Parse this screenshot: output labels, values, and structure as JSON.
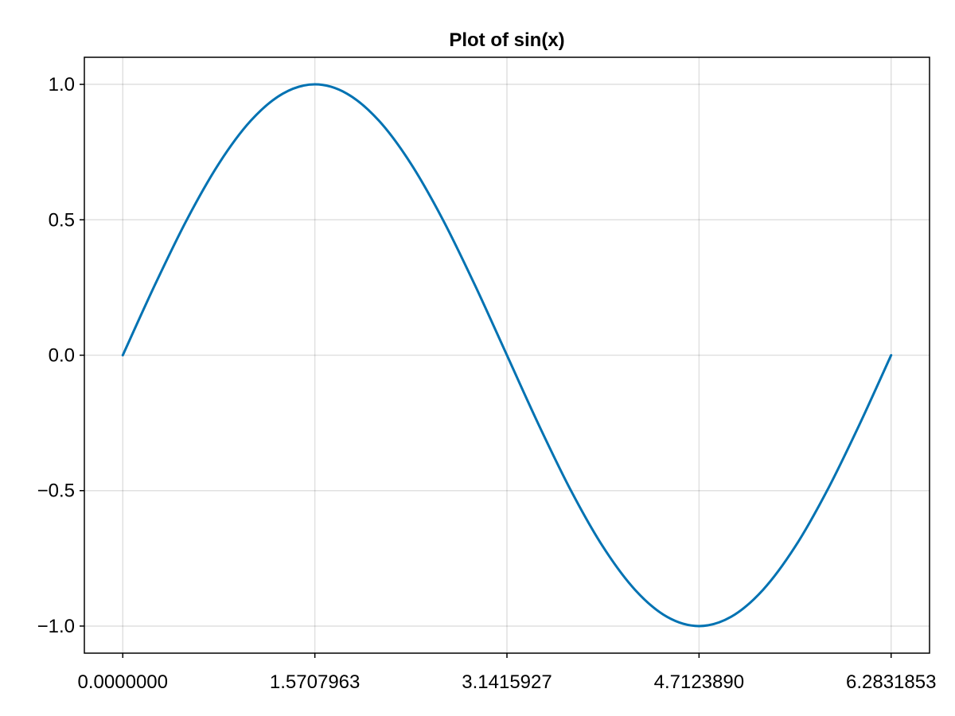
{
  "chart_data": {
    "type": "line",
    "title": "Plot of sin(x)",
    "xlabel": "",
    "ylabel": "",
    "xlim": [
      -0.314159,
      6.597345
    ],
    "ylim": [
      -1.1,
      1.1
    ],
    "x_ticks": [
      0,
      1.5707963,
      3.1415927,
      4.712389,
      6.2831853
    ],
    "x_tick_labels": [
      "0.0000000",
      "1.5707963",
      "3.1415927",
      "4.7123890",
      "6.2831853"
    ],
    "y_ticks": [
      1.0,
      0.5,
      0.0,
      -0.5,
      -1.0
    ],
    "y_tick_labels": [
      "1.0",
      "0.5",
      "0.0",
      "−0.5",
      "−1.0"
    ],
    "grid": true,
    "series": [
      {
        "color": "#0072b2",
        "x": [
          0,
          0.2618,
          0.5236,
          0.7854,
          1.0472,
          1.309,
          1.5708,
          1.8326,
          2.0944,
          2.3562,
          2.618,
          2.8798,
          3.1416,
          3.4034,
          3.6652,
          3.927,
          4.1888,
          4.4506,
          4.7124,
          4.9742,
          5.236,
          5.4978,
          5.7596,
          6.0214,
          6.2832
        ],
        "y": [
          0,
          0.2588,
          0.5,
          0.7071,
          0.866,
          0.9659,
          1.0,
          0.9659,
          0.866,
          0.7071,
          0.5,
          0.2588,
          0,
          -0.2588,
          -0.5,
          -0.7071,
          -0.866,
          -0.9659,
          -1.0,
          -0.9659,
          -0.866,
          -0.7071,
          -0.5,
          -0.2588,
          0
        ]
      }
    ]
  }
}
